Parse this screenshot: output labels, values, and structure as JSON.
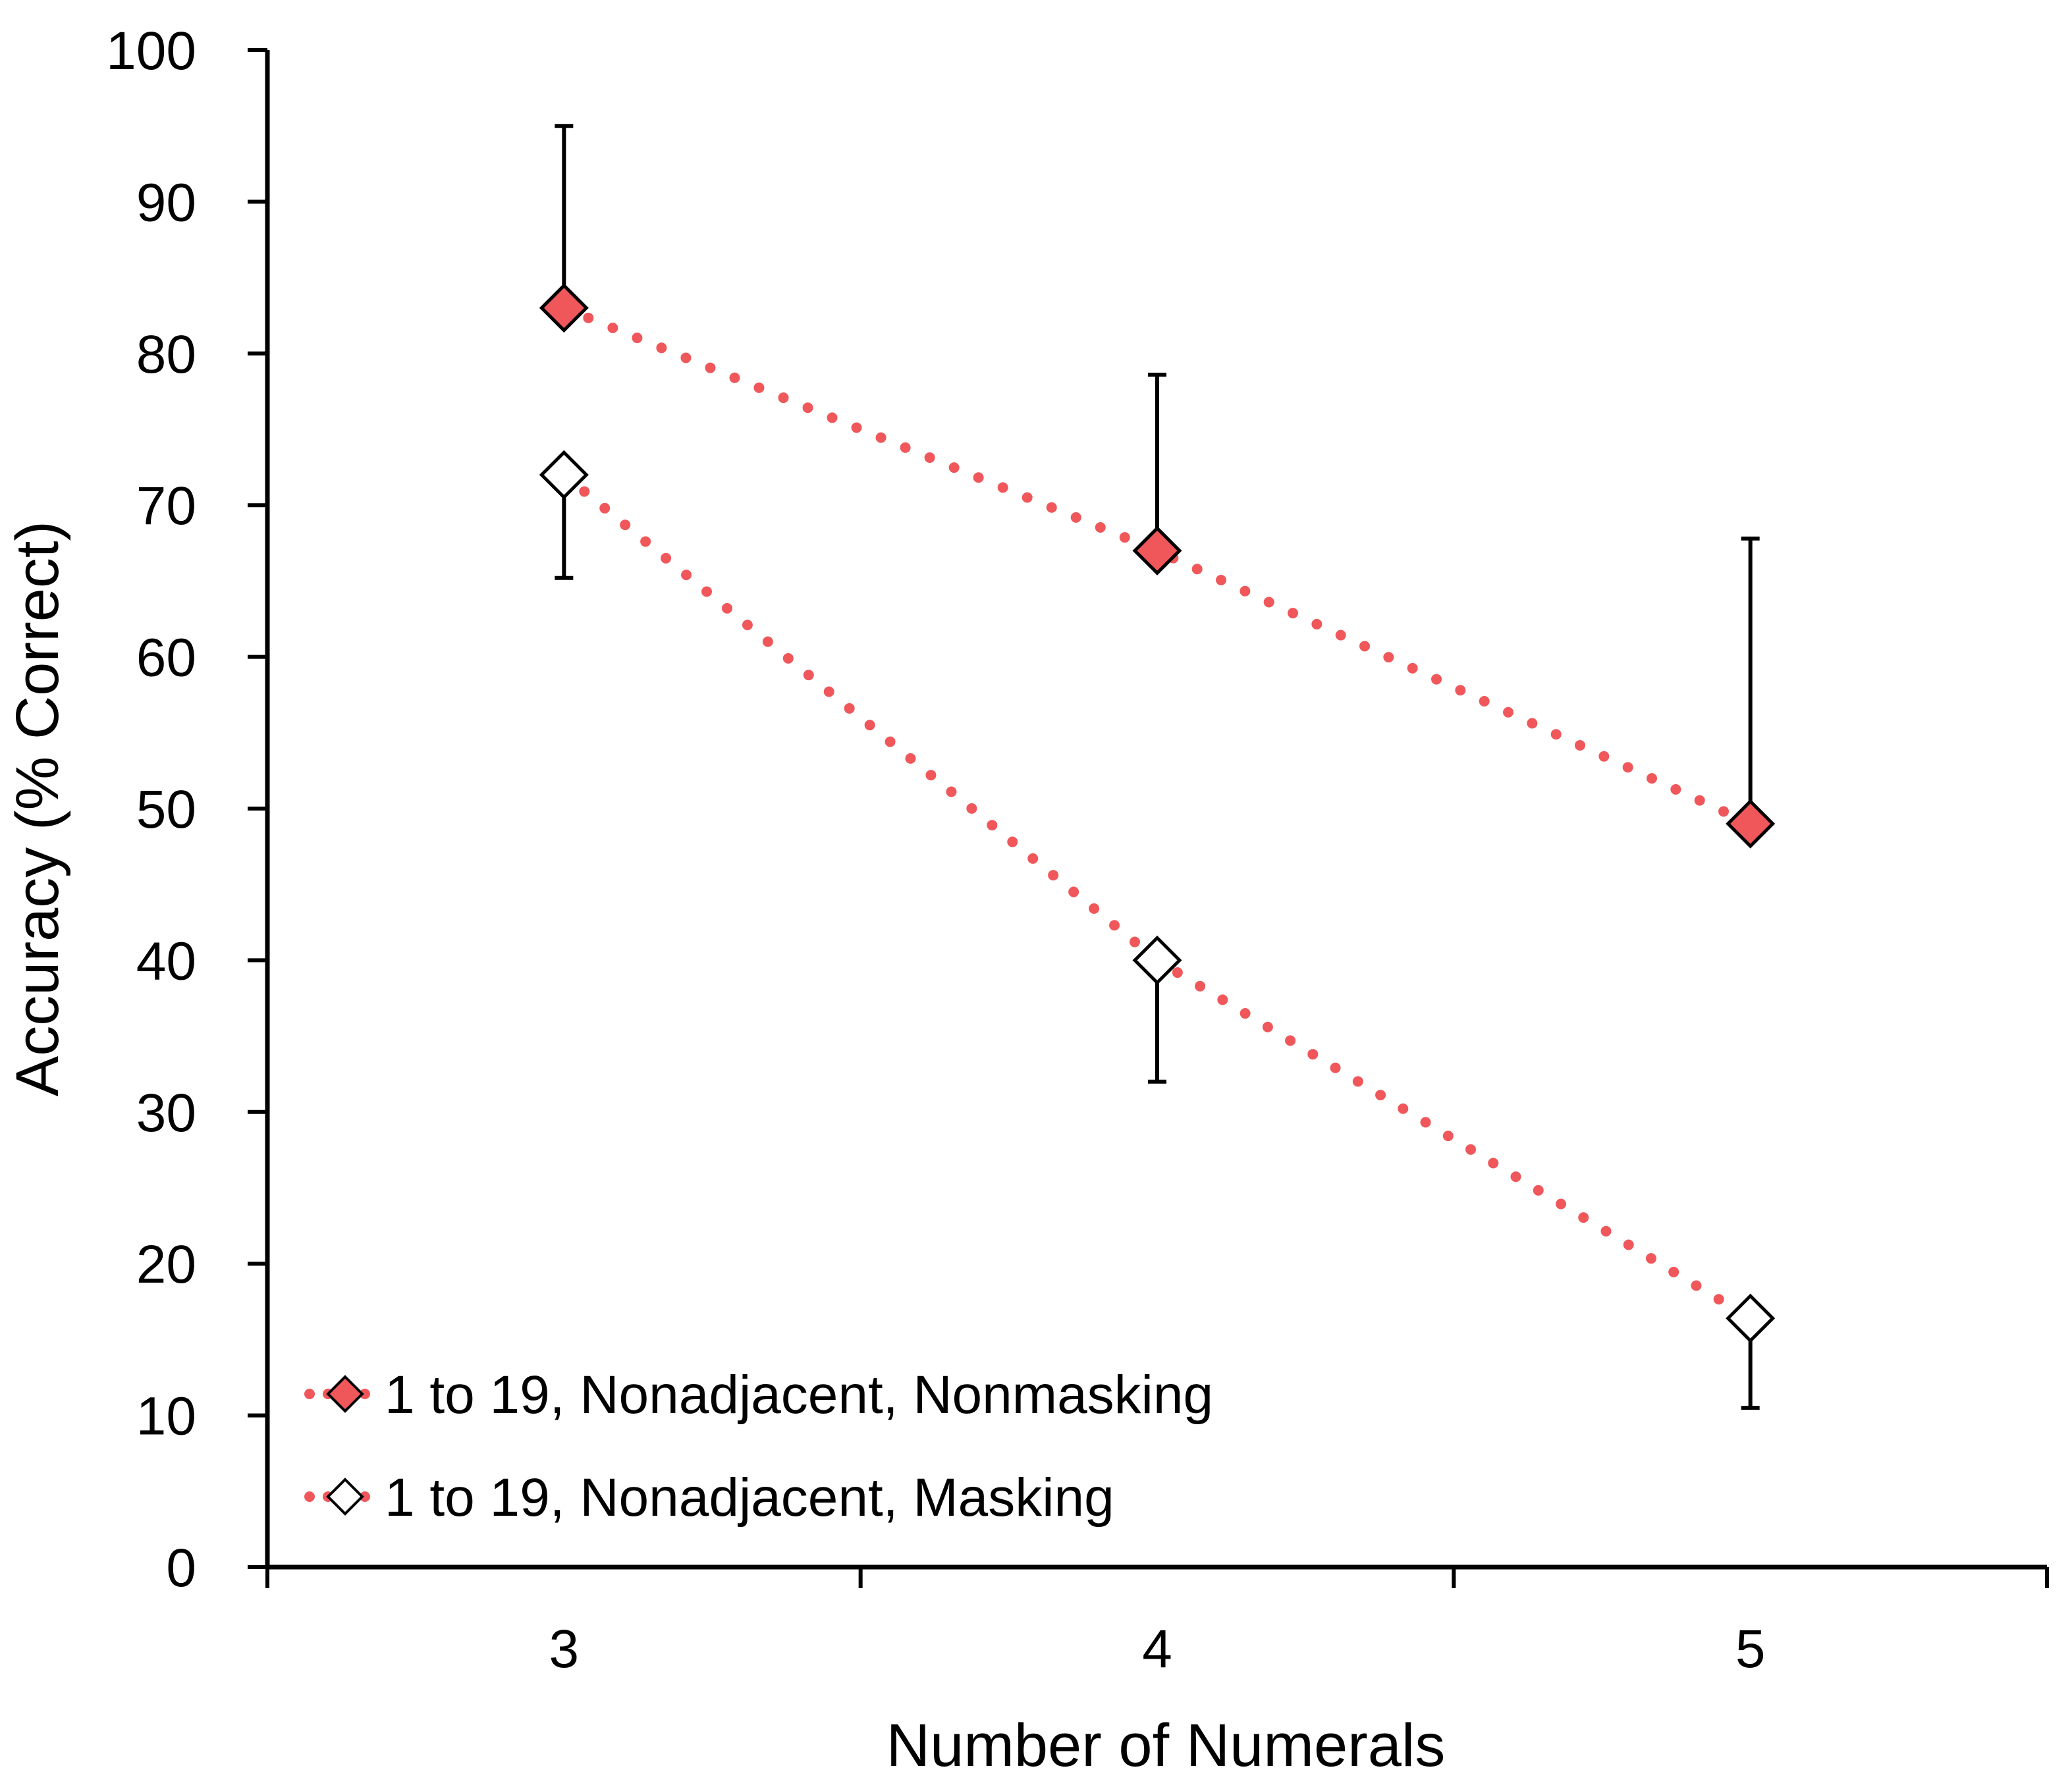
{
  "chart_data": {
    "type": "line",
    "xlabel": "Number of Numerals",
    "ylabel": "Accuracy (% Correct)",
    "categories": [
      "3",
      "4",
      "5"
    ],
    "x": [
      3,
      4,
      5
    ],
    "xlim": [
      2.5,
      5.5
    ],
    "ylim": [
      0,
      100
    ],
    "yticks": [
      "0",
      "10",
      "20",
      "30",
      "40",
      "50",
      "60",
      "70",
      "80",
      "90",
      "100"
    ],
    "grid": false,
    "legend_position": "bottom-left",
    "series": [
      {
        "name": "1 to 19, Nonadjacent, Nonmasking",
        "values": [
          83,
          67,
          49
        ],
        "error_upper": [
          95,
          78.6,
          67.8
        ],
        "line_color": "#f0575a",
        "marker_fill": "#f0575a",
        "marker_stroke": "#000000",
        "marker": "diamond"
      },
      {
        "name": "1 to 19, Nonadjacent, Masking",
        "values": [
          72,
          40,
          16.4
        ],
        "error_lower": [
          65.2,
          32,
          10.5
        ],
        "line_color": "#f0575a",
        "marker_fill": "#ffffff",
        "marker_stroke": "#000000",
        "marker": "diamond"
      }
    ]
  }
}
